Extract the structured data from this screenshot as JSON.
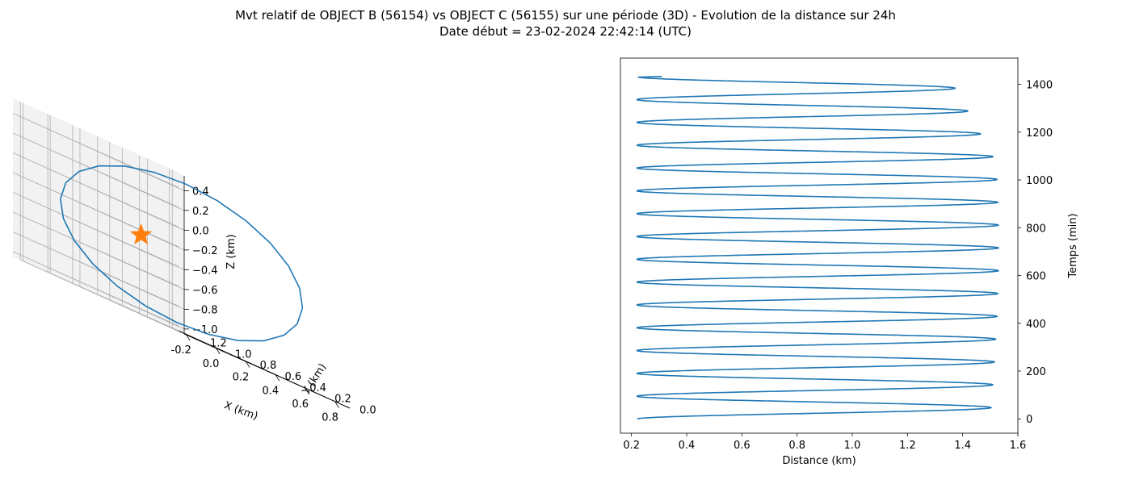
{
  "figure": {
    "title_line1": "Mvt relatif de OBJECT B (56154) vs OBJECT C (56155) sur une période (3D) - Evolution de la distance sur 24h",
    "title_line2": "Date début = 23-02-2024 22:42:14 (UTC)"
  },
  "colors": {
    "series": "#1f77b4",
    "marker": "#ff7f0e",
    "grid": "#b0b0b0",
    "pane": "#f2f2f2"
  },
  "chart_data": [
    {
      "type": "line3d",
      "xlabel": "X (km)",
      "ylabel": "Y (km)",
      "zlabel": "Z (km)",
      "x_ticks": [
        "-0.2",
        "0.0",
        "0.2",
        "0.4",
        "0.6",
        "0.8"
      ],
      "y_ticks": [
        "0.0",
        "0.2",
        "0.4",
        "0.6",
        "0.8",
        "1.0",
        "1.2"
      ],
      "z_ticks": [
        "0.4",
        "0.2",
        "0.0",
        "−0.2",
        "−0.4",
        "−0.6",
        "−0.8",
        "−1.0"
      ],
      "xlim": [
        -0.25,
        0.9
      ],
      "ylim": [
        -0.05,
        1.28
      ],
      "zlim": [
        -1.05,
        0.55
      ],
      "grid": true,
      "marker": {
        "shape": "star",
        "x": 0.0,
        "y": 0.55,
        "z": -0.25
      },
      "orbit": {
        "center": [
          0.33,
          0.62,
          -0.25
        ],
        "semi_axis_a": [
          0.52,
          -0.35,
          0.0
        ],
        "semi_axis_b": [
          -0.12,
          -0.18,
          0.72
        ],
        "samples": 24
      }
    },
    {
      "type": "line",
      "xlabel": "Distance (km)",
      "ylabel": "Temps (min)",
      "x_ticks": [
        "0.2",
        "0.4",
        "0.6",
        "0.8",
        "1.0",
        "1.2",
        "1.4",
        "1.6"
      ],
      "y_ticks": [
        "0",
        "200",
        "400",
        "600",
        "800",
        "1000",
        "1200",
        "1400"
      ],
      "xlim": [
        0.16,
        1.6
      ],
      "ylim": [
        -60,
        1510
      ],
      "grid": false,
      "series": [
        {
          "t_min_range": [
            0,
            1430
          ],
          "distance_min": 0.22,
          "distance_max_start": 1.5,
          "distance_max_mid": 1.53,
          "distance_max_end": 1.38,
          "period_min": 95.5,
          "first_max_t": 47,
          "end_distance": 0.31
        }
      ]
    }
  ]
}
